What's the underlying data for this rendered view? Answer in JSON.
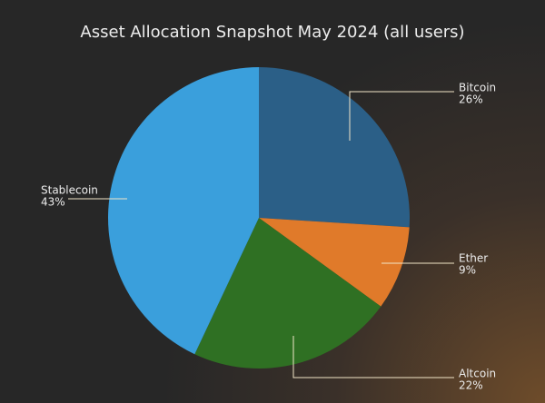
{
  "chart_data": {
    "type": "pie",
    "title": "Asset Allocation Snapshot May 2024 (all users)",
    "categories": [
      "Bitcoin",
      "Ether",
      "Altcoin",
      "Stablecoin"
    ],
    "values": [
      26,
      9,
      22,
      43
    ],
    "value_labels": [
      "26%",
      "9%",
      "22%",
      "43%"
    ],
    "colors": [
      "#2b5f87",
      "#e07a2a",
      "#2f7023",
      "#3a9fdc"
    ]
  }
}
